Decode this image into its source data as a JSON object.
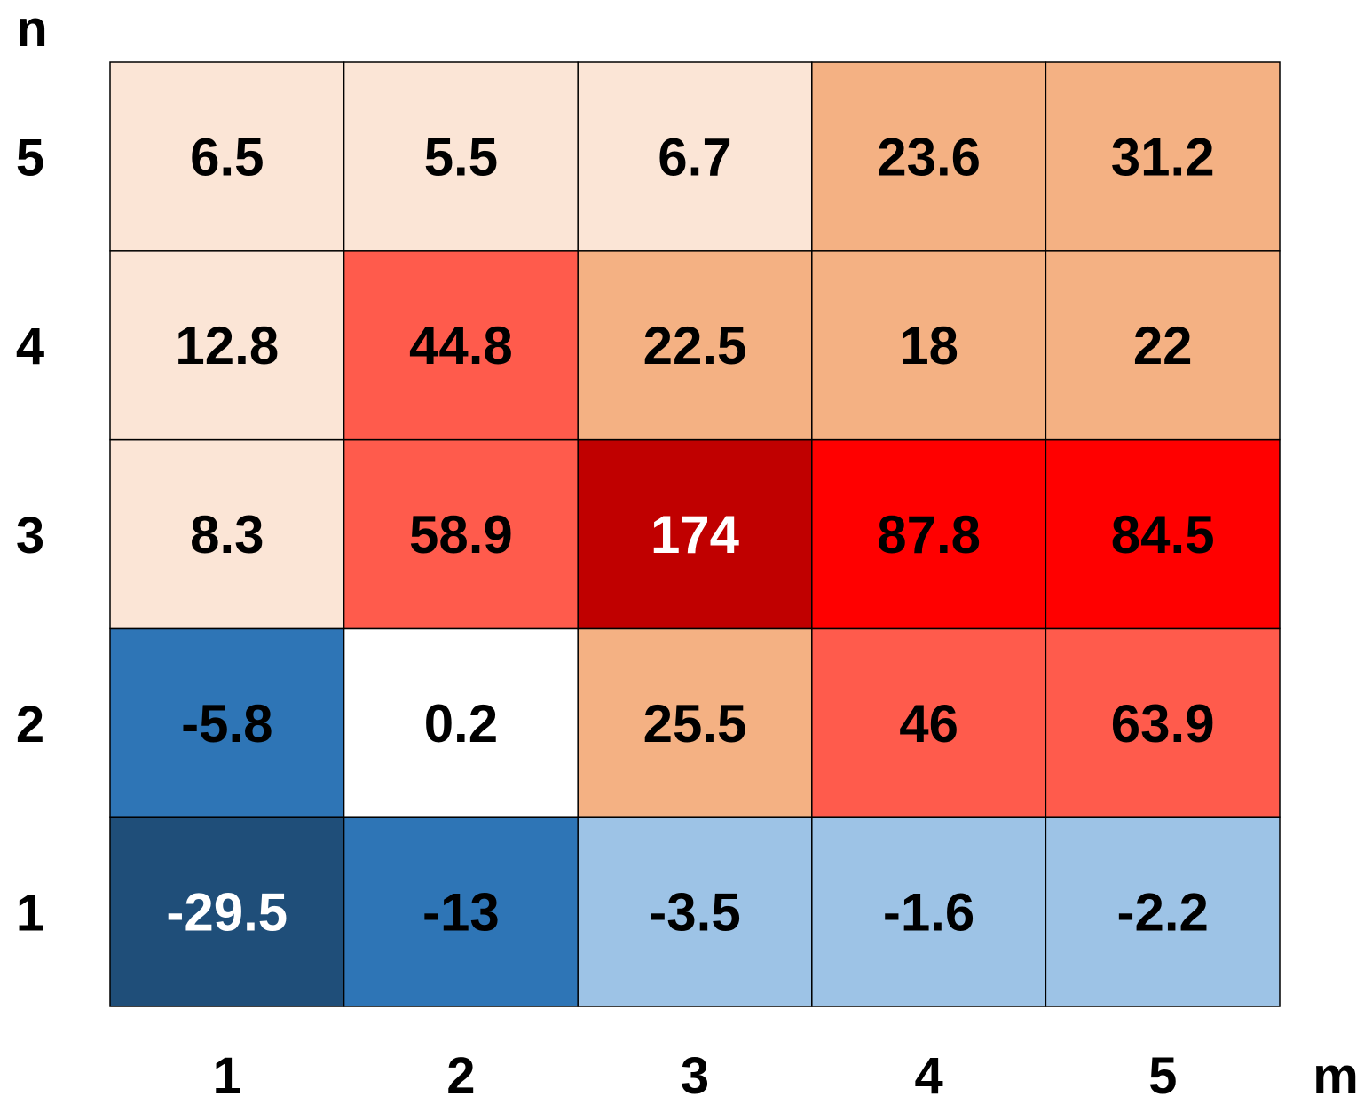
{
  "chart_data": {
    "type": "heatmap",
    "title": "",
    "xlabel": "m",
    "ylabel": "n",
    "x_categories": [
      "1",
      "2",
      "3",
      "4",
      "5"
    ],
    "y_categories": [
      "1",
      "2",
      "3",
      "4",
      "5"
    ],
    "values": [
      [
        -29.5,
        -13,
        -3.5,
        -1.6,
        -2.2
      ],
      [
        -5.8,
        0.2,
        25.5,
        46,
        63.9
      ],
      [
        8.3,
        58.9,
        174,
        87.8,
        84.5
      ],
      [
        12.8,
        44.8,
        22.5,
        18,
        22
      ],
      [
        6.5,
        5.5,
        6.7,
        23.6,
        31.2
      ]
    ],
    "value_labels": [
      [
        "-29.5",
        "-13",
        "-3.5",
        "-1.6",
        "-2.2"
      ],
      [
        "-5.8",
        "0.2",
        "25.5",
        "46",
        "63.9"
      ],
      [
        "8.3",
        "58.9",
        "174",
        "87.8",
        "84.5"
      ],
      [
        "12.8",
        "44.8",
        "22.5",
        "18",
        "22"
      ],
      [
        "6.5",
        "5.5",
        "6.7",
        "23.6",
        "31.2"
      ]
    ],
    "cell_colors": [
      [
        "#1f4e79",
        "#2e75b6",
        "#9dc3e6",
        "#9dc3e6",
        "#9dc3e6"
      ],
      [
        "#2e75b6",
        "#ffffff",
        "#f4b183",
        "#ff5b4c",
        "#ff5b4c"
      ],
      [
        "#fbe5d6",
        "#ff5b4c",
        "#c00000",
        "#ff0000",
        "#ff0000"
      ],
      [
        "#fbe5d6",
        "#ff5b4c",
        "#f4b183",
        "#f4b183",
        "#f4b183"
      ],
      [
        "#fbe5d6",
        "#fbe5d6",
        "#fbe5d6",
        "#f4b183",
        "#f4b183"
      ]
    ],
    "text_colors": [
      [
        "#ffffff",
        "#000000",
        "#000000",
        "#000000",
        "#000000"
      ],
      [
        "#000000",
        "#000000",
        "#000000",
        "#000000",
        "#000000"
      ],
      [
        "#000000",
        "#000000",
        "#ffffff",
        "#000000",
        "#000000"
      ],
      [
        "#000000",
        "#000000",
        "#000000",
        "#000000",
        "#000000"
      ],
      [
        "#000000",
        "#000000",
        "#000000",
        "#000000",
        "#000000"
      ]
    ],
    "grid": true,
    "legend": "none"
  }
}
